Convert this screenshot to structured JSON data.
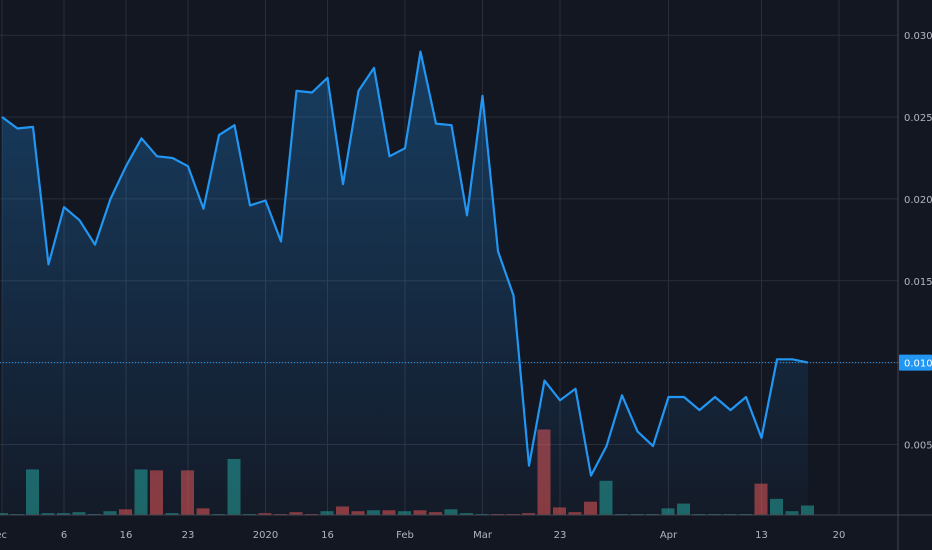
{
  "theme": {
    "background": "#131722",
    "grid": "#2a2e39",
    "line": "#2196f3",
    "volume_up": "#26a69a",
    "volume_down": "#ef5350",
    "axis_text": "#b2b5be",
    "badge_bg": "#2196f3",
    "badge_text": "#ffffff"
  },
  "chart_data": {
    "type": "area",
    "title": "",
    "y_axis": {
      "ticks": [
        "0.0050",
        "0.0100",
        "0.0150",
        "0.0200",
        "0.0250",
        "0.0300"
      ],
      "tick_values": [
        0.005,
        0.01,
        0.015,
        0.02,
        0.025,
        0.03
      ],
      "ylim": [
        0.0,
        0.0317
      ],
      "position": "right"
    },
    "x_axis": {
      "ticks": [
        "ec",
        "6",
        "16",
        "23",
        "2020",
        "16",
        "Feb",
        "Mar",
        "23",
        "Apr",
        "13",
        "20"
      ],
      "tick_index": [
        0,
        4,
        8,
        12,
        17,
        21,
        26,
        31,
        36,
        43,
        49,
        54
      ]
    },
    "last_price_label": "0.0100",
    "last_price": 0.01,
    "grid": true,
    "series": [
      {
        "values": [
          0.025,
          0.0243,
          0.0244,
          0.016,
          0.0195,
          0.0187,
          0.0172,
          0.02,
          0.022,
          0.0237,
          0.0226,
          0.0225,
          0.022,
          0.0194,
          0.0239,
          0.0245,
          0.0196,
          0.0199,
          0.0174,
          0.0266,
          0.0265,
          0.0274,
          0.0209,
          0.0266,
          0.028,
          0.0226,
          0.0231,
          0.029,
          0.0246,
          0.0245,
          0.019,
          0.0263,
          0.0168,
          0.0141,
          0.0037,
          0.0089,
          0.0077,
          0.0084,
          0.0031,
          0.0049,
          0.008,
          0.0058,
          0.0049,
          0.0079,
          0.0079,
          0.0071,
          0.0079,
          0.0071,
          0.0079,
          0.0054,
          0.0102,
          0.0102,
          0.01
        ]
      }
    ],
    "volume": {
      "scale_max": 100,
      "values": [
        2,
        1,
        48,
        2,
        2,
        3,
        1,
        4,
        6,
        48,
        47,
        2,
        47,
        7,
        1,
        59,
        1,
        2,
        1,
        3,
        1,
        4,
        9,
        4,
        5,
        5,
        4,
        5,
        3,
        6,
        2,
        1,
        1,
        1,
        2,
        90,
        8,
        3,
        14,
        36,
        1,
        1,
        1,
        7,
        12,
        1,
        1,
        1,
        1,
        33,
        17,
        4,
        10
      ],
      "colors": [
        "up",
        "up",
        "up",
        "up",
        "up",
        "up",
        "up",
        "up",
        "down",
        "up",
        "down",
        "up",
        "down",
        "down",
        "up",
        "up",
        "up",
        "down",
        "down",
        "down",
        "down",
        "up",
        "down",
        "down",
        "up",
        "down",
        "up",
        "down",
        "down",
        "up",
        "up",
        "up",
        "down",
        "down",
        "down",
        "down",
        "down",
        "down",
        "down",
        "up",
        "up",
        "up",
        "up",
        "up",
        "up",
        "up",
        "up",
        "up",
        "up",
        "down",
        "up",
        "up",
        "up"
      ]
    }
  }
}
